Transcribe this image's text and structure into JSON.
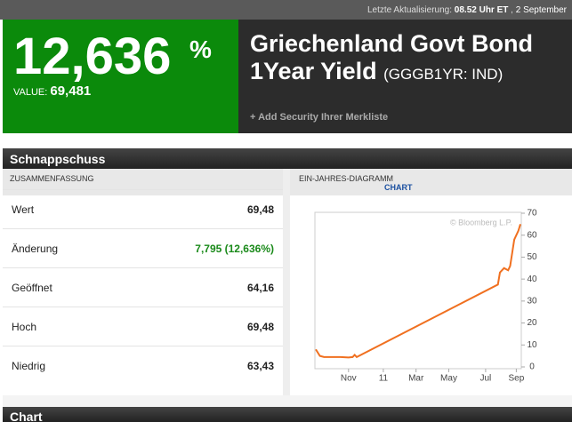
{
  "header": {
    "last_update_label": "Letzte Aktualisierung:",
    "last_update_time": "08.52 Uhr ET",
    "separator": ",",
    "last_update_date": "2 September"
  },
  "quote": {
    "value": "12,636",
    "unit": "%",
    "value_label": "VALUE:",
    "value_number": "69,481",
    "name": "Griechenland Govt Bond 1Year Yield",
    "ticker": "(GGGB1YR: IND)",
    "add_link": "+ Add Security Ihrer Merkliste"
  },
  "snapshot": {
    "title": "Schnappschuss",
    "summary": {
      "title": "ZUSAMMENFASSUNG",
      "rows": [
        [
          "Wert",
          "69,48"
        ],
        [
          "Änderung",
          "7,795 (12,636%)"
        ],
        [
          "Geöffnet",
          "64,16"
        ],
        [
          "Hoch",
          "69,48"
        ],
        [
          "Niedrig",
          "63,43"
        ]
      ]
    },
    "chart_panel": {
      "title": "EIN-JAHRES-DIAGRAMM",
      "link": "CHART",
      "watermark": "© Bloomberg L.P.",
      "chart_data": {
        "type": "line",
        "x": [
          0,
          2,
          4,
          8,
          12,
          16,
          18,
          19,
          20,
          89,
          90,
          92,
          94,
          95,
          96,
          97,
          98,
          99,
          100
        ],
        "values": [
          8,
          5,
          4.5,
          4.5,
          4.5,
          4.3,
          4.5,
          5.5,
          4.5,
          37.5,
          43,
          45,
          44,
          46,
          52,
          58,
          60,
          62,
          65
        ],
        "color": "#f07020",
        "xlim": [
          0,
          100
        ],
        "ylim": [
          0,
          70
        ],
        "yticks": [
          0,
          10,
          20,
          30,
          40,
          50,
          60,
          70
        ],
        "xticks": [
          {
            "value": 16,
            "label": "Nov"
          },
          {
            "value": 33,
            "label": "11"
          },
          {
            "value": 49,
            "label": "Mar"
          },
          {
            "value": 65,
            "label": "May"
          },
          {
            "value": 83,
            "label": "Jul"
          },
          {
            "value": 98,
            "label": "Sep"
          }
        ]
      }
    }
  },
  "section2": {
    "title": "Chart"
  }
}
